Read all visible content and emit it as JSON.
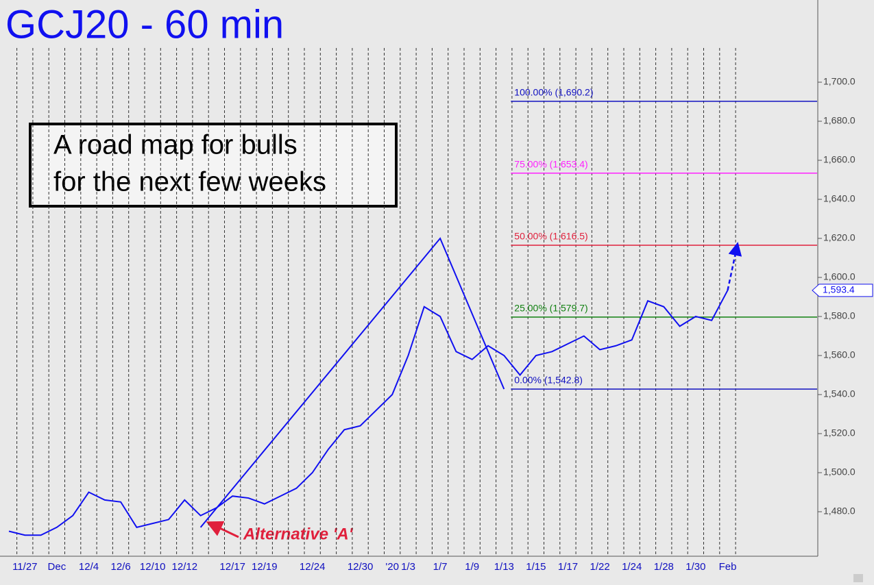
{
  "chart_data": {
    "type": "line",
    "title": "GCJ20 - 60 min",
    "annotation": [
      "A road map for bulls",
      "for the next few weeks"
    ],
    "callout": "Alternative 'A'",
    "categories": [
      null,
      "11/27",
      null,
      "Dec",
      null,
      "12/4",
      null,
      "12/6",
      null,
      "12/10",
      null,
      "12/12",
      null,
      null,
      "12/17",
      null,
      "12/19",
      null,
      null,
      "12/24",
      null,
      null,
      "12/30",
      null,
      "'20",
      "1/3",
      null,
      "1/7",
      null,
      "1/9",
      null,
      "1/13",
      null,
      "1/15",
      null,
      "1/17",
      null,
      "1/22",
      null,
      "1/24",
      null,
      "1/28",
      null,
      "1/30",
      null,
      "Feb"
    ],
    "series": [
      {
        "color": "#1010f0",
        "values": [
          1470,
          1468,
          1468,
          1472,
          1478,
          1490,
          1486,
          1485,
          1472,
          1474,
          1476,
          1486,
          1478,
          1482,
          1488,
          1487,
          1484,
          1488,
          1492,
          1500,
          1512,
          1522,
          1524,
          1532,
          1540,
          1560,
          1585,
          1580,
          1562,
          1558,
          1565,
          1560,
          1550,
          1560,
          1562,
          1566,
          1570,
          1563,
          1565,
          1568,
          1588,
          1585,
          1575,
          1580,
          1578,
          1593.4
        ],
        "value_labels": [
          null,
          null,
          null,
          null,
          null,
          null,
          null,
          null,
          null,
          null,
          null,
          null,
          null,
          null,
          null,
          null,
          null,
          null,
          null,
          null,
          null,
          null,
          null,
          null,
          null,
          null,
          null,
          null,
          null,
          null,
          null,
          null,
          null,
          null,
          null,
          null,
          null,
          null,
          null,
          null,
          null,
          null,
          null,
          null,
          null,
          "1,593.4"
        ]
      }
    ],
    "pattern": {
      "color": "#1010f0",
      "x": [
        12,
        27,
        31
      ],
      "values": [
        1472,
        1620,
        1542.8
      ]
    },
    "projection": {
      "color": "#1010f0",
      "x": [
        45,
        45.6
      ],
      "values": [
        1593.4,
        1616.5
      ]
    },
    "levels": [
      {
        "value": 1690.2,
        "label": "100.00% (1,690.2)",
        "color": "#1010c0"
      },
      {
        "value": 1653.4,
        "label": "75.00% (1,653.4)",
        "color": "#ff20ff"
      },
      {
        "value": 1616.5,
        "label": "50.00% (1,616.5)",
        "color": "#e0203c"
      },
      {
        "value": 1579.7,
        "label": "25.00% (1,579.7)",
        "color": "#108010"
      },
      {
        "value": 1542.8,
        "label": "0.00% (1,542.8)",
        "color": "#1010c0"
      }
    ],
    "ylim": [
      1457.2,
      1742.1
    ],
    "yticks": [
      {
        "value": 1480,
        "label": "1,480.0"
      },
      {
        "value": 1500,
        "label": "1,500.0"
      },
      {
        "value": 1520,
        "label": "1,520.0"
      },
      {
        "value": 1540,
        "label": "1,540.0"
      },
      {
        "value": 1560,
        "label": "1,560.0"
      },
      {
        "value": 1580,
        "label": "1,580.0"
      },
      {
        "value": 1600,
        "label": "1,600.0"
      },
      {
        "value": 1620,
        "label": "1,620.0"
      },
      {
        "value": 1640,
        "label": "1,640.0"
      },
      {
        "value": 1660,
        "label": "1,660.0"
      },
      {
        "value": 1680,
        "label": "1,680.0"
      },
      {
        "value": 1700,
        "label": "1,700.0"
      }
    ]
  }
}
